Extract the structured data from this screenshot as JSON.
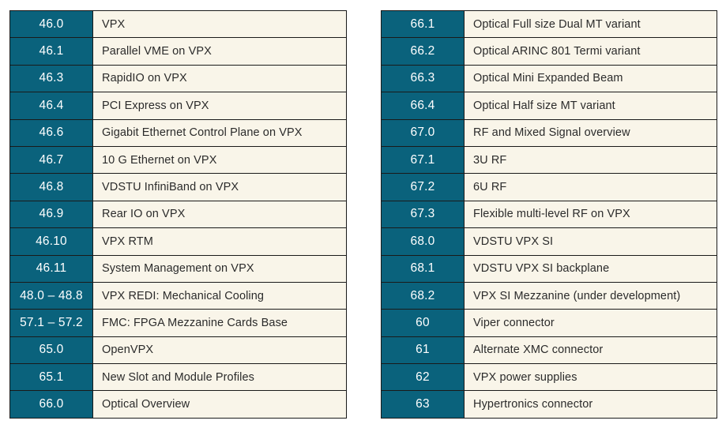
{
  "left_table": [
    {
      "number": "46.0",
      "title": "VPX"
    },
    {
      "number": "46.1",
      "title": "Parallel VME on VPX"
    },
    {
      "number": "46.3",
      "title": "RapidIO on VPX"
    },
    {
      "number": "46.4",
      "title": "PCI Express on VPX"
    },
    {
      "number": "46.6",
      "title": "Gigabit Ethernet Control Plane on VPX"
    },
    {
      "number": "46.7",
      "title": "10 G Ethernet on VPX"
    },
    {
      "number": "46.8",
      "title": "VDSTU InfiniBand on VPX"
    },
    {
      "number": "46.9",
      "title": "Rear IO on VPX"
    },
    {
      "number": "46.10",
      "title": "VPX RTM"
    },
    {
      "number": "46.11",
      "title": "System Management on VPX"
    },
    {
      "number": "48.0 – 48.8",
      "title": "VPX REDI: Mechanical Cooling"
    },
    {
      "number": "57.1 – 57.2",
      "title": "FMC: FPGA Mezzanine Cards Base"
    },
    {
      "number": "65.0",
      "title": "OpenVPX"
    },
    {
      "number": "65.1",
      "title": "New Slot and Module Profiles"
    },
    {
      "number": "66.0",
      "title": "Optical Overview"
    }
  ],
  "right_table": [
    {
      "number": "66.1",
      "title": "Optical Full size Dual MT variant"
    },
    {
      "number": "66.2",
      "title": "Optical ARINC 801 Termi variant"
    },
    {
      "number": "66.3",
      "title": "Optical Mini Expanded Beam"
    },
    {
      "number": "66.4",
      "title": "Optical Half size MT variant"
    },
    {
      "number": "67.0",
      "title": "RF and Mixed Signal overview"
    },
    {
      "number": "67.1",
      "title": "3U RF"
    },
    {
      "number": "67.2",
      "title": "6U RF"
    },
    {
      "number": "67.3",
      "title": "Flexible multi-level RF on VPX"
    },
    {
      "number": "68.0",
      "title": "VDSTU VPX SI"
    },
    {
      "number": "68.1",
      "title": "VDSTU  VPX SI backplane"
    },
    {
      "number": "68.2",
      "title": "VPX SI Mezzanine (under development)"
    },
    {
      "number": "60",
      "title": "Viper connector"
    },
    {
      "number": "61",
      "title": "Alternate XMC connector"
    },
    {
      "number": "62",
      "title": "VPX power supplies"
    },
    {
      "number": "63",
      "title": "Hypertronics connector"
    }
  ],
  "colors": {
    "number_cell_bg": "#0a627c",
    "title_cell_bg": "#f9f5e9",
    "border": "#1a1a1a"
  }
}
